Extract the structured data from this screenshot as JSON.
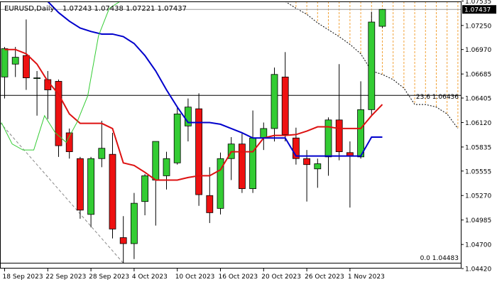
{
  "header": {
    "symbol": "EURUSD,Daily",
    "ohlc": "1.07243 1.07438 1.07221 1.07437"
  },
  "colors": {
    "bull": "#33cc33",
    "bear": "#ee1111",
    "tenkan": "#dd1111",
    "kijun": "#0000cc",
    "chikou": "#33cc33",
    "cloud_hatch": "#f2a33a",
    "price_tag_bg": "#000000"
  },
  "annotations": {
    "fib_236": "23.6 1.06436",
    "fib_0": "0.0 1.04483",
    "price_tag": "1.07437"
  },
  "chart_data": {
    "type": "candlestick",
    "title": "EURUSD,Daily",
    "ylim": [
      1.0442,
      1.0753
    ],
    "y_ticks": [
      "1.07535",
      "1.07250",
      "1.06970",
      "1.06685",
      "1.06405",
      "1.06120",
      "1.05835",
      "1.05555",
      "1.05270",
      "1.04985",
      "1.04700",
      "1.04420"
    ],
    "x_tick_labels": [
      {
        "label": "18 Sep 2023",
        "index": 0
      },
      {
        "label": "22 Sep 2023",
        "index": 4
      },
      {
        "label": "28 Sep 2023",
        "index": 8
      },
      {
        "label": "4 Oct 2023",
        "index": 12
      },
      {
        "label": "10 Oct 2023",
        "index": 16
      },
      {
        "label": "16 Oct 2023",
        "index": 20
      },
      {
        "label": "20 Oct 2023",
        "index": 24
      },
      {
        "label": "26 Oct 2023",
        "index": 28
      },
      {
        "label": "1 Nov 2023",
        "index": 32
      }
    ],
    "candles": [
      {
        "o": 1.0665,
        "h": 1.07,
        "l": 1.064,
        "c": 1.0698
      },
      {
        "o": 1.068,
        "h": 1.07,
        "l": 1.0665,
        "c": 1.0688
      },
      {
        "o": 1.069,
        "h": 1.0732,
        "l": 1.065,
        "c": 1.0664
      },
      {
        "o": 1.0664,
        "h": 1.0672,
        "l": 1.062,
        "c": 1.0664
      },
      {
        "o": 1.0662,
        "h": 1.0672,
        "l": 1.0616,
        "c": 1.065
      },
      {
        "o": 1.066,
        "h": 1.0662,
        "l": 1.0572,
        "c": 1.0585
      },
      {
        "o": 1.06,
        "h": 1.0605,
        "l": 1.057,
        "c": 1.0578
      },
      {
        "o": 1.057,
        "h": 1.0572,
        "l": 1.05,
        "c": 1.051
      },
      {
        "o": 1.0505,
        "h": 1.0572,
        "l": 1.049,
        "c": 1.057
      },
      {
        "o": 1.057,
        "h": 1.0614,
        "l": 1.056,
        "c": 1.0582
      },
      {
        "o": 1.0575,
        "h": 1.06,
        "l": 1.0477,
        "c": 1.0488
      },
      {
        "o": 1.0478,
        "h": 1.0503,
        "l": 1.0448,
        "c": 1.0471
      },
      {
        "o": 1.0471,
        "h": 1.053,
        "l": 1.0453,
        "c": 1.0518
      },
      {
        "o": 1.052,
        "h": 1.0552,
        "l": 1.0504,
        "c": 1.055
      },
      {
        "o": 1.0545,
        "h": 1.059,
        "l": 1.0492,
        "c": 1.059
      },
      {
        "o": 1.055,
        "h": 1.0578,
        "l": 1.0534,
        "c": 1.057
      },
      {
        "o": 1.0565,
        "h": 1.063,
        "l": 1.0563,
        "c": 1.0622
      },
      {
        "o": 1.0608,
        "h": 1.064,
        "l": 1.059,
        "c": 1.063
      },
      {
        "o": 1.0628,
        "h": 1.0646,
        "l": 1.0515,
        "c": 1.0528
      },
      {
        "o": 1.0527,
        "h": 1.056,
        "l": 1.0495,
        "c": 1.0507
      },
      {
        "o": 1.0512,
        "h": 1.0577,
        "l": 1.0505,
        "c": 1.057
      },
      {
        "o": 1.057,
        "h": 1.0595,
        "l": 1.0545,
        "c": 1.0587
      },
      {
        "o": 1.0587,
        "h": 1.0599,
        "l": 1.053,
        "c": 1.0535
      },
      {
        "o": 1.0535,
        "h": 1.0626,
        "l": 1.053,
        "c": 1.0594
      },
      {
        "o": 1.0594,
        "h": 1.0612,
        "l": 1.058,
        "c": 1.0605
      },
      {
        "o": 1.0605,
        "h": 1.0676,
        "l": 1.059,
        "c": 1.0668
      },
      {
        "o": 1.0665,
        "h": 1.0694,
        "l": 1.059,
        "c": 1.0598
      },
      {
        "o": 1.0594,
        "h": 1.0606,
        "l": 1.0563,
        "c": 1.057
      },
      {
        "o": 1.057,
        "h": 1.058,
        "l": 1.052,
        "c": 1.0563
      },
      {
        "o": 1.0558,
        "h": 1.057,
        "l": 1.0536,
        "c": 1.0564
      },
      {
        "o": 1.0572,
        "h": 1.0618,
        "l": 1.055,
        "c": 1.0615
      },
      {
        "o": 1.0615,
        "h": 1.068,
        "l": 1.0568,
        "c": 1.0578
      },
      {
        "o": 1.0577,
        "h": 1.059,
        "l": 1.0513,
        "c": 1.0573
      },
      {
        "o": 1.0572,
        "h": 1.066,
        "l": 1.057,
        "c": 1.0627
      },
      {
        "o": 1.0627,
        "h": 1.0741,
        "l": 1.0621,
        "c": 1.0729
      },
      {
        "o": 1.0724,
        "h": 1.0744,
        "l": 1.0722,
        "c": 1.07437
      }
    ],
    "tenkan": [
      1.0697,
      1.0697,
      1.0692,
      1.068,
      1.066,
      1.0645,
      1.0622,
      1.0611,
      1.0611,
      1.0611,
      1.0605,
      1.0565,
      1.0562,
      1.0554,
      1.0545,
      1.0545,
      1.0545,
      1.0548,
      1.055,
      1.055,
      1.0557,
      1.0578,
      1.0578,
      1.0578,
      1.0594,
      1.0597,
      1.0597,
      1.0598,
      1.0602,
      1.0607,
      1.0607,
      1.0605,
      1.0605,
      1.0605,
      1.062,
      1.0633
    ],
    "kijun": [
      null,
      null,
      null,
      null,
      1.0753,
      1.074,
      1.073,
      1.0722,
      1.0718,
      1.0715,
      1.0715,
      1.0712,
      1.0704,
      1.069,
      1.0672,
      1.065,
      1.063,
      1.0612,
      1.0612,
      1.0612,
      1.061,
      1.0605,
      1.06,
      1.0594,
      1.0594,
      1.0594,
      1.0594,
      1.0573,
      1.0573,
      1.0573,
      1.0573,
      1.0573,
      1.0573,
      1.0573,
      1.0595,
      1.0595
    ],
    "chikou": [
      1.0612,
      1.0587,
      1.058,
      1.058,
      1.062,
      1.06,
      1.0589,
      1.0612,
      1.0643,
      1.0713,
      1.0745,
      1.0753
    ]
  }
}
